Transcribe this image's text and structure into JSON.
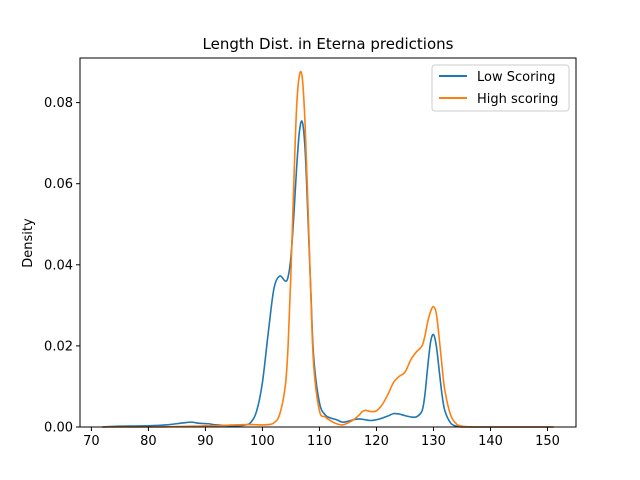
{
  "chart_data": {
    "type": "line",
    "title": "Length Dist. in Eterna predictions",
    "xlabel": "",
    "ylabel": "Density",
    "xlim": [
      68,
      155
    ],
    "ylim": [
      0,
      0.091
    ],
    "xticks": [
      70,
      80,
      90,
      100,
      110,
      120,
      130,
      140,
      150
    ],
    "xtick_labels": [
      "70",
      "80",
      "90",
      "100",
      "110",
      "120",
      "130",
      "140",
      "150"
    ],
    "yticks": [
      0,
      0.02,
      0.04,
      0.06,
      0.08
    ],
    "ytick_labels": [
      "0.00",
      "0.02",
      "0.04",
      "0.06",
      "0.08"
    ],
    "grid": false,
    "legend": "top-right",
    "series": [
      {
        "name": "Low Scoring",
        "color": "#1f77b4",
        "x": [
          72,
          75,
          80,
          83,
          86,
          87.5,
          89,
          90.5,
          92,
          95,
          97,
          98,
          99,
          100,
          101,
          102,
          103,
          104,
          104.5,
          105,
          105.5,
          106,
          106.5,
          107,
          107.5,
          108,
          108.5,
          109,
          110,
          111,
          112,
          113,
          114,
          115,
          116,
          117,
          118,
          119,
          120,
          121,
          122,
          123,
          124,
          125,
          126,
          127,
          128,
          128.5,
          129,
          129.5,
          130,
          130.5,
          131,
          131.5,
          132,
          133,
          134,
          135,
          137,
          140,
          145,
          151
        ],
        "values": [
          0.0,
          0.0002,
          0.0003,
          0.0005,
          0.001,
          0.0012,
          0.0009,
          0.0008,
          0.0005,
          0.0003,
          0.0005,
          0.0012,
          0.004,
          0.011,
          0.023,
          0.034,
          0.0372,
          0.036,
          0.037,
          0.042,
          0.052,
          0.064,
          0.073,
          0.0752,
          0.068,
          0.051,
          0.033,
          0.017,
          0.006,
          0.003,
          0.0022,
          0.0018,
          0.0012,
          0.0014,
          0.0018,
          0.002,
          0.0018,
          0.0016,
          0.0018,
          0.0022,
          0.0027,
          0.0033,
          0.0032,
          0.0028,
          0.0025,
          0.0025,
          0.004,
          0.008,
          0.015,
          0.021,
          0.0228,
          0.02,
          0.014,
          0.008,
          0.004,
          0.001,
          0.0002,
          0.0,
          0.0,
          0.0,
          0.0,
          0.0
        ]
      },
      {
        "name": "High scoring",
        "color": "#ff7f0e",
        "x": [
          72,
          80,
          88,
          90,
          92,
          95,
          98,
          100,
          101,
          102,
          103,
          104,
          104.5,
          105,
          105.5,
          106,
          106.5,
          107,
          107.5,
          108,
          108.5,
          109,
          110,
          111,
          112,
          113,
          114,
          115,
          116,
          117,
          117.5,
          118,
          118.5,
          119,
          120,
          121,
          122,
          123,
          124,
          125,
          126,
          127,
          128,
          128.5,
          129,
          129.5,
          130,
          130.5,
          131,
          131.5,
          132,
          133,
          134,
          135,
          137,
          140,
          145,
          151
        ],
        "values": [
          0.0,
          0.0,
          0.0002,
          0.0003,
          0.0003,
          0.0005,
          0.0006,
          0.0005,
          0.0006,
          0.001,
          0.003,
          0.01,
          0.02,
          0.038,
          0.06,
          0.079,
          0.0868,
          0.086,
          0.074,
          0.054,
          0.032,
          0.015,
          0.004,
          0.0025,
          0.0015,
          0.0008,
          0.0005,
          0.001,
          0.0018,
          0.003,
          0.0038,
          0.0041,
          0.004,
          0.0038,
          0.004,
          0.0055,
          0.008,
          0.011,
          0.0125,
          0.0135,
          0.0165,
          0.0185,
          0.02,
          0.0225,
          0.026,
          0.0285,
          0.0297,
          0.028,
          0.022,
          0.015,
          0.009,
          0.003,
          0.0008,
          0.0002,
          0.0,
          0.0,
          0.0,
          0.0
        ]
      }
    ]
  }
}
